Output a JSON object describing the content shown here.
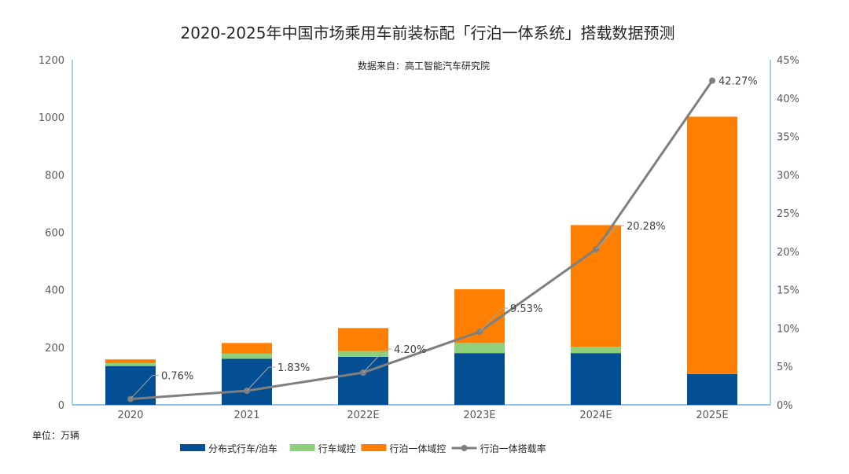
{
  "chart_data": {
    "type": "bar",
    "stacked": true,
    "title": "2020-2025年中国市场乘用车前装标配「行泊一体系统」搭载数据预测",
    "source": "数据来自：高工智能汽车研究院",
    "unit_label": "单位：万辆",
    "categories": [
      "2020",
      "2021",
      "2022E",
      "2023E",
      "2024E",
      "2025E"
    ],
    "ylim": [
      0,
      1200
    ],
    "yticks": [
      0,
      200,
      400,
      600,
      800,
      1000,
      1200
    ],
    "y2lim": [
      0,
      45
    ],
    "y2ticks": [
      "0%",
      "5%",
      "10%",
      "15%",
      "20%",
      "25%",
      "30%",
      "35%",
      "40%",
      "45%"
    ],
    "series": [
      {
        "name": "分布式行车/泊车",
        "type": "bar",
        "color": "#044E93",
        "values": [
          135,
          160,
          167,
          180,
          180,
          107
        ]
      },
      {
        "name": "行车域控",
        "type": "bar",
        "color": "#8ED07C",
        "values": [
          10,
          18,
          20,
          35,
          22,
          0
        ]
      },
      {
        "name": "行泊一体域控",
        "type": "bar",
        "color": "#FF7F00",
        "values": [
          13,
          37,
          80,
          187,
          423,
          895
        ]
      },
      {
        "name": "行泊一体搭载率",
        "type": "line",
        "axis": "right",
        "color": "#7F7F7F",
        "values": [
          0.76,
          1.83,
          4.2,
          9.53,
          20.28,
          42.27
        ],
        "labels": [
          "0.76%",
          "1.83%",
          "4.20%",
          "9.53%",
          "20.28%",
          "42.27%"
        ]
      }
    ]
  }
}
